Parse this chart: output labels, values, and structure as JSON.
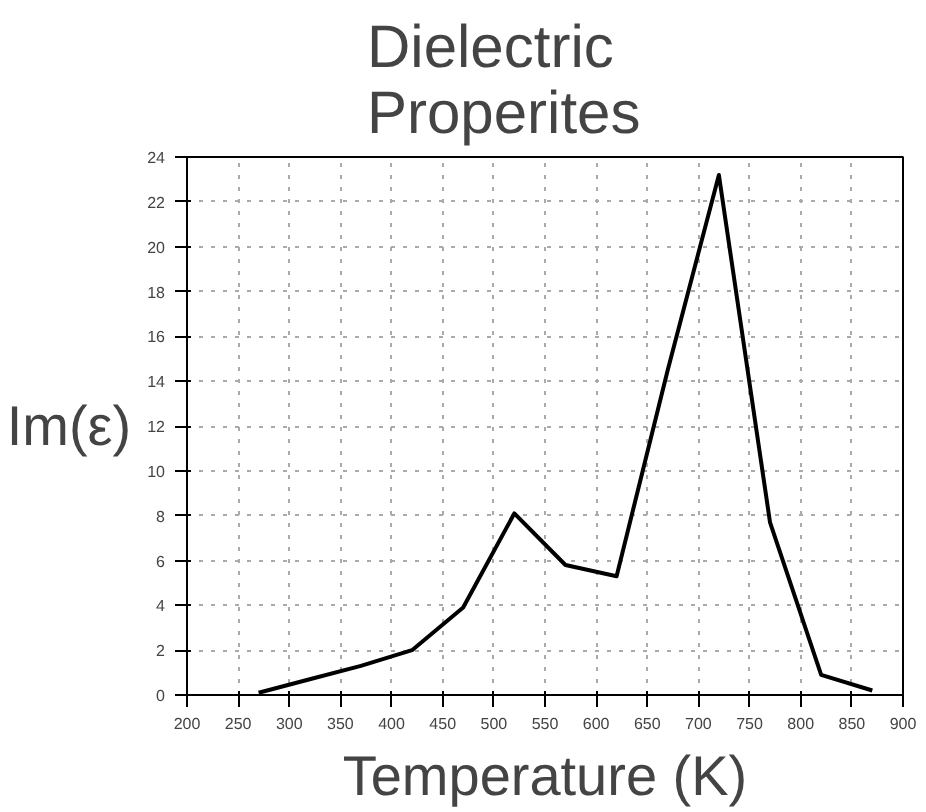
{
  "chart_data": {
    "type": "line",
    "title": "Dielectric Properites",
    "xlabel": "Temperature (K)",
    "ylabel": "Im(ε)",
    "x": [
      270,
      320,
      370,
      420,
      470,
      520,
      570,
      620,
      670,
      720,
      770,
      820,
      870
    ],
    "series": [
      {
        "color": "#000000",
        "values": [
          0.1,
          0.7,
          1.3,
          2.0,
          3.9,
          8.1,
          5.8,
          5.3,
          14.5,
          23.2,
          7.7,
          0.9,
          0.2
        ]
      }
    ],
    "xlim": [
      200,
      900
    ],
    "xticks": [
      200,
      250,
      300,
      350,
      400,
      450,
      500,
      550,
      600,
      650,
      700,
      750,
      800,
      850,
      900
    ],
    "ylim": [
      0,
      24
    ],
    "yticks": [
      0,
      2,
      4,
      6,
      8,
      10,
      12,
      14,
      16,
      18,
      20,
      22,
      24
    ],
    "grid": true,
    "marker": "none",
    "line_style": "solid"
  }
}
